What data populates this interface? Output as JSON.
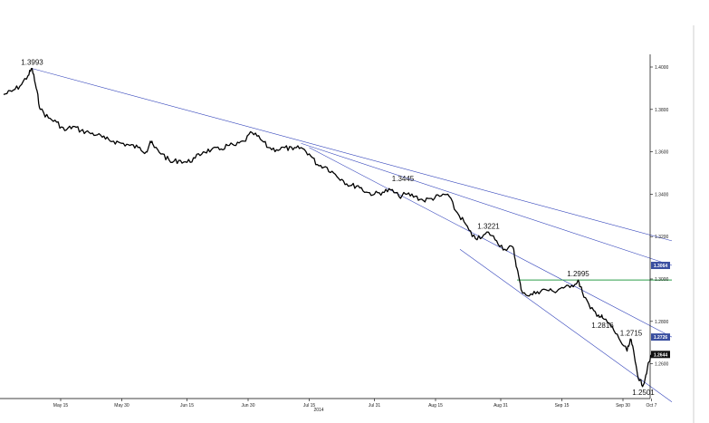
{
  "chart_data": {
    "type": "line",
    "title": "",
    "xlabel": "2014",
    "ylabel": "",
    "x_ticks": [
      "May 15",
      "May 30",
      "Jun 15",
      "Jun 30",
      "Jul 15",
      "Jul 31",
      "Aug 15",
      "Aug 31",
      "Sep 15",
      "Sep 30",
      "Oct 7"
    ],
    "y_ticks": [
      "1.4000",
      "1.3800",
      "1.3600",
      "1.3400",
      "1.3200",
      "1.3000",
      "1.2800",
      "1.2600"
    ],
    "ylim": [
      1.235,
      1.408
    ],
    "grid": false,
    "series": [
      {
        "name": "",
        "color": "#000000",
        "points": [
          [
            "2014-05-01",
            1.387
          ],
          [
            "2014-05-03",
            1.3885
          ],
          [
            "2014-05-05",
            1.391
          ],
          [
            "2014-05-07",
            1.396
          ],
          [
            "2014-05-08",
            1.3993
          ],
          [
            "2014-05-09",
            1.39
          ],
          [
            "2014-05-10",
            1.38
          ],
          [
            "2014-05-12",
            1.376
          ],
          [
            "2014-05-14",
            1.374
          ],
          [
            "2014-05-16",
            1.37
          ],
          [
            "2014-05-18",
            1.372
          ],
          [
            "2014-05-20",
            1.37
          ],
          [
            "2014-05-22",
            1.369
          ],
          [
            "2014-05-24",
            1.368
          ],
          [
            "2014-05-26",
            1.366
          ],
          [
            "2014-05-28",
            1.365
          ],
          [
            "2014-05-30",
            1.364
          ],
          [
            "2014-06-01",
            1.363
          ],
          [
            "2014-06-03",
            1.362
          ],
          [
            "2014-06-05",
            1.36
          ],
          [
            "2014-06-06",
            1.365
          ],
          [
            "2014-06-07",
            1.362
          ],
          [
            "2014-06-09",
            1.359
          ],
          [
            "2014-06-11",
            1.355
          ],
          [
            "2014-06-13",
            1.356
          ],
          [
            "2014-06-15",
            1.355
          ],
          [
            "2014-06-17",
            1.357
          ],
          [
            "2014-06-19",
            1.36
          ],
          [
            "2014-06-21",
            1.361
          ],
          [
            "2014-06-23",
            1.361
          ],
          [
            "2014-06-25",
            1.363
          ],
          [
            "2014-06-27",
            1.363
          ],
          [
            "2014-06-29",
            1.365
          ],
          [
            "2014-07-01",
            1.369
          ],
          [
            "2014-07-03",
            1.366
          ],
          [
            "2014-07-05",
            1.362
          ],
          [
            "2014-07-07",
            1.361
          ],
          [
            "2014-07-09",
            1.362
          ],
          [
            "2014-07-11",
            1.361
          ],
          [
            "2014-07-13",
            1.362
          ],
          [
            "2014-07-15",
            1.359
          ],
          [
            "2014-07-17",
            1.354
          ],
          [
            "2014-07-19",
            1.353
          ],
          [
            "2014-07-21",
            1.35
          ],
          [
            "2014-07-23",
            1.347
          ],
          [
            "2014-07-25",
            1.344
          ],
          [
            "2014-07-27",
            1.344
          ],
          [
            "2014-07-29",
            1.341
          ],
          [
            "2014-07-31",
            1.34
          ],
          [
            "2014-08-02",
            1.341
          ],
          [
            "2014-08-04",
            1.342
          ],
          [
            "2014-08-06",
            1.339
          ],
          [
            "2014-08-08",
            1.34
          ],
          [
            "2014-08-10",
            1.339
          ],
          [
            "2014-08-12",
            1.337
          ],
          [
            "2014-08-14",
            1.338
          ],
          [
            "2014-08-16",
            1.339
          ],
          [
            "2014-08-18",
            1.34
          ],
          [
            "2014-08-20",
            1.332
          ],
          [
            "2014-08-22",
            1.327
          ],
          [
            "2014-08-24",
            1.32
          ],
          [
            "2014-08-26",
            1.319
          ],
          [
            "2014-08-28",
            1.3221
          ],
          [
            "2014-08-30",
            1.318
          ],
          [
            "2014-09-01",
            1.314
          ],
          [
            "2014-09-03",
            1.315
          ],
          [
            "2014-09-04",
            1.305
          ],
          [
            "2014-09-05",
            1.295
          ],
          [
            "2014-09-07",
            1.292
          ],
          [
            "2014-09-09",
            1.294
          ],
          [
            "2014-09-11",
            1.295
          ],
          [
            "2014-09-13",
            1.294
          ],
          [
            "2014-09-15",
            1.296
          ],
          [
            "2014-09-17",
            1.296
          ],
          [
            "2014-09-19",
            1.2995
          ],
          [
            "2014-09-20",
            1.294
          ],
          [
            "2014-09-22",
            1.286
          ],
          [
            "2014-09-24",
            1.283
          ],
          [
            "2014-09-25",
            1.2816
          ],
          [
            "2014-09-27",
            1.278
          ],
          [
            "2014-09-29",
            1.272
          ],
          [
            "2014-10-01",
            1.266
          ],
          [
            "2014-10-02",
            1.2715
          ],
          [
            "2014-10-03",
            1.261
          ],
          [
            "2014-10-04",
            1.252
          ],
          [
            "2014-10-05",
            1.2501
          ],
          [
            "2014-10-06",
            1.258
          ],
          [
            "2014-10-07",
            1.264
          ],
          [
            "2014-10-08",
            1.2644
          ]
        ]
      }
    ],
    "trendlines": [
      {
        "color": "#3344bb",
        "from": [
          "2014-05-08",
          1.3993
        ],
        "to": [
          "2014-10-12",
          1.318
        ]
      },
      {
        "color": "#3344bb",
        "from": [
          "2014-07-13",
          1.364
        ],
        "to": [
          "2014-10-12",
          1.3064
        ]
      },
      {
        "color": "#3344bb",
        "from": [
          "2014-07-15",
          1.362
        ],
        "to": [
          "2014-10-12",
          1.2726
        ]
      },
      {
        "color": "#3344bb",
        "from": [
          "2014-08-21",
          1.314
        ],
        "to": [
          "2014-10-12",
          1.242
        ]
      }
    ],
    "hline": {
      "color": "#2e9e4a",
      "value": 1.2995,
      "from": "2014-09-04",
      "to": "2014-10-12"
    },
    "annotations": [
      {
        "text": "1.3993",
        "x": "2014-05-08",
        "y": 1.3993,
        "pos": "above"
      },
      {
        "text": "1.3445",
        "x": "2014-08-07",
        "y": 1.3445,
        "pos": "above"
      },
      {
        "text": "1.3221",
        "x": "2014-08-28",
        "y": 1.3221,
        "pos": "above"
      },
      {
        "text": "1.2995",
        "x": "2014-09-19",
        "y": 1.2995,
        "pos": "above"
      },
      {
        "text": "1.2816",
        "x": "2014-09-25",
        "y": 1.2816,
        "pos": "below"
      },
      {
        "text": "1.2715",
        "x": "2014-10-02",
        "y": 1.2715,
        "pos": "above"
      },
      {
        "text": "1.2501",
        "x": "2014-10-05",
        "y": 1.2501,
        "pos": "below"
      }
    ],
    "price_badges": [
      {
        "text": "1.3064",
        "value": 1.3064,
        "color": "#3a4fa0"
      },
      {
        "text": "1.2726",
        "value": 1.2726,
        "color": "#3a4fa0"
      },
      {
        "text": "1.2644",
        "value": 1.2644,
        "color": "#111111"
      }
    ]
  }
}
